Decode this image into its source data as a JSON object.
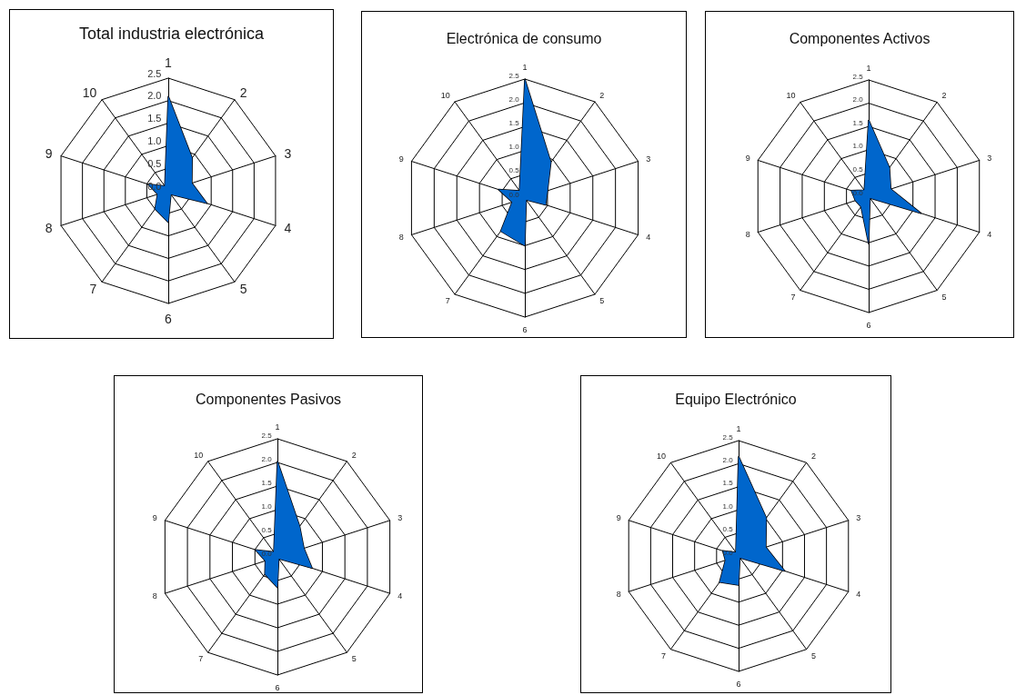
{
  "chart_data": [
    {
      "type": "radar",
      "title": "Total industria electrónica",
      "categories": [
        "1",
        "2",
        "3",
        "4",
        "5",
        "6",
        "7",
        "8",
        "9",
        "10"
      ],
      "ylim": [
        0,
        2.5
      ],
      "yticks": [
        {
          "value": 0,
          "label": "0.0"
        },
        {
          "value": 0.5,
          "label": "0.5"
        },
        {
          "value": 1,
          "label": "1.0"
        },
        {
          "value": 1.5,
          "label": "1.5"
        },
        {
          "value": 2,
          "label": "2.0"
        },
        {
          "value": 2.5,
          "label": "2.5"
        }
      ],
      "grid": true,
      "marker": "none",
      "series": [
        {
          "color": "#0066cc",
          "values": [
            2.1,
            0.9,
            0.55,
            0.9,
            0.1,
            0.7,
            0.5,
            0.25,
            0.47,
            0.13
          ]
        }
      ]
    },
    {
      "type": "radar",
      "title": "Electrónica de consumo",
      "categories": [
        "1",
        "2",
        "3",
        "4",
        "5",
        "6",
        "7",
        "8",
        "9",
        "10"
      ],
      "ylim": [
        0,
        2.5
      ],
      "yticks": [
        {
          "value": 0,
          "label": "0.0"
        },
        {
          "value": 0.5,
          "label": "0.5"
        },
        {
          "value": 1,
          "label": "1.0"
        },
        {
          "value": 1.5,
          "label": "1.5"
        },
        {
          "value": 2,
          "label": "2.0"
        },
        {
          "value": 2.5,
          "label": "2.5"
        }
      ],
      "grid": true,
      "marker": "none",
      "series": [
        {
          "color": "#0066cc",
          "values": [
            2.5,
            0.93,
            0.5,
            0.46,
            0.05,
            1.0,
            0.86,
            0.28,
            0.58,
            0.19
          ]
        }
      ]
    },
    {
      "type": "radar",
      "title": "Componentes Activos",
      "categories": [
        "1",
        "2",
        "3",
        "4",
        "5",
        "6",
        "7",
        "8",
        "9",
        "10"
      ],
      "ylim": [
        0,
        2.5
      ],
      "yticks": [
        {
          "value": 0,
          "label": "0.0"
        },
        {
          "value": 0.5,
          "label": "0.5"
        },
        {
          "value": 1,
          "label": "1.0"
        },
        {
          "value": 1.5,
          "label": "1.5"
        },
        {
          "value": 2,
          "label": "2.0"
        },
        {
          "value": 2.5,
          "label": "2.5"
        }
      ],
      "grid": true,
      "marker": "none",
      "series": [
        {
          "color": "#0066cc",
          "values": [
            1.64,
            0.76,
            0.5,
            1.18,
            0.05,
            1.02,
            0.28,
            0.3,
            0.39,
            0.16
          ]
        }
      ]
    },
    {
      "type": "radar",
      "title": "Componentes Pasivos",
      "categories": [
        "1",
        "2",
        "3",
        "4",
        "5",
        "6",
        "7",
        "8",
        "9",
        "10"
      ],
      "ylim": [
        0,
        2.5
      ],
      "yticks": [
        {
          "value": 0,
          "label": "0.0"
        },
        {
          "value": 0.5,
          "label": "0.5"
        },
        {
          "value": 1,
          "label": "1.0"
        },
        {
          "value": 1.5,
          "label": "1.5"
        },
        {
          "value": 2,
          "label": "2.0"
        },
        {
          "value": 2.5,
          "label": "2.5"
        }
      ],
      "grid": true,
      "marker": "none",
      "series": [
        {
          "color": "#0066cc",
          "values": [
            2.03,
            0.8,
            0.59,
            0.77,
            0.05,
            0.65,
            0.45,
            0.27,
            0.49,
            0.13
          ]
        }
      ]
    },
    {
      "type": "radar",
      "title": "Equipo Electrónico",
      "categories": [
        "1",
        "2",
        "3",
        "4",
        "5",
        "6",
        "7",
        "8",
        "9",
        "10"
      ],
      "ylim": [
        0,
        2.5
      ],
      "yticks": [
        {
          "value": 0,
          "label": "0.0"
        },
        {
          "value": 0.5,
          "label": "0.5"
        },
        {
          "value": 1,
          "label": "1.0"
        },
        {
          "value": 1.5,
          "label": "1.5"
        },
        {
          "value": 2,
          "label": "2.0"
        },
        {
          "value": 2.5,
          "label": "2.5"
        }
      ],
      "grid": true,
      "marker": "none",
      "series": [
        {
          "color": "#0066cc",
          "values": [
            2.16,
            1.02,
            0.62,
            1.05,
            0.05,
            0.63,
            0.7,
            0.3,
            0.36,
            0.1
          ]
        }
      ]
    }
  ]
}
